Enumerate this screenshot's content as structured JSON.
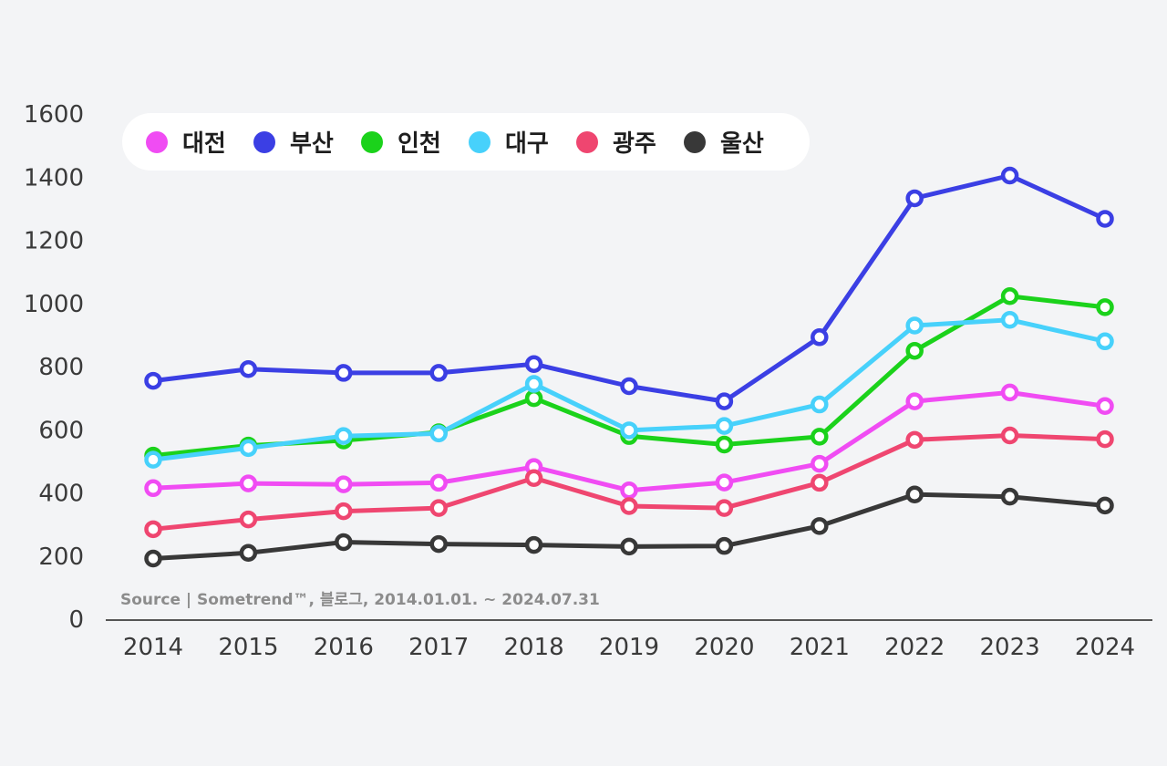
{
  "chart_data": {
    "type": "line",
    "title": "",
    "xlabel": "",
    "ylabel": "",
    "x": [
      "2014",
      "2015",
      "2016",
      "2017",
      "2018",
      "2019",
      "2020",
      "2021",
      "2022",
      "2023",
      "2024"
    ],
    "ylim": [
      0,
      1600
    ],
    "yticks": [
      "0",
      "200",
      "400",
      "600",
      "800",
      "1000",
      "1200",
      "1400",
      "1600"
    ],
    "grid": false,
    "legend_position": "top-left",
    "series": [
      {
        "name": "대전",
        "color": "#f04cf3",
        "values": [
          415,
          430,
          427,
          432,
          482,
          408,
          433,
          492,
          690,
          718,
          675
        ]
      },
      {
        "name": "부산",
        "color": "#3b3fe4",
        "values": [
          755,
          792,
          780,
          780,
          808,
          738,
          690,
          893,
          1333,
          1405,
          1268
        ]
      },
      {
        "name": "인천",
        "color": "#1bd21b",
        "values": [
          518,
          550,
          566,
          592,
          700,
          580,
          553,
          578,
          850,
          1023,
          988
        ]
      },
      {
        "name": "대구",
        "color": "#47d1fb",
        "values": [
          505,
          542,
          580,
          588,
          745,
          598,
          612,
          680,
          930,
          948,
          880
        ]
      },
      {
        "name": "광주",
        "color": "#ef4670",
        "values": [
          285,
          316,
          342,
          352,
          447,
          358,
          352,
          432,
          568,
          582,
          570
        ]
      },
      {
        "name": "울산",
        "color": "#383838",
        "values": [
          192,
          210,
          244,
          238,
          235,
          230,
          232,
          295,
          395,
          388,
          360
        ]
      }
    ],
    "source": "Source | Sometrend™, 블로그, 2014.01.01. ~ 2024.07.31"
  }
}
